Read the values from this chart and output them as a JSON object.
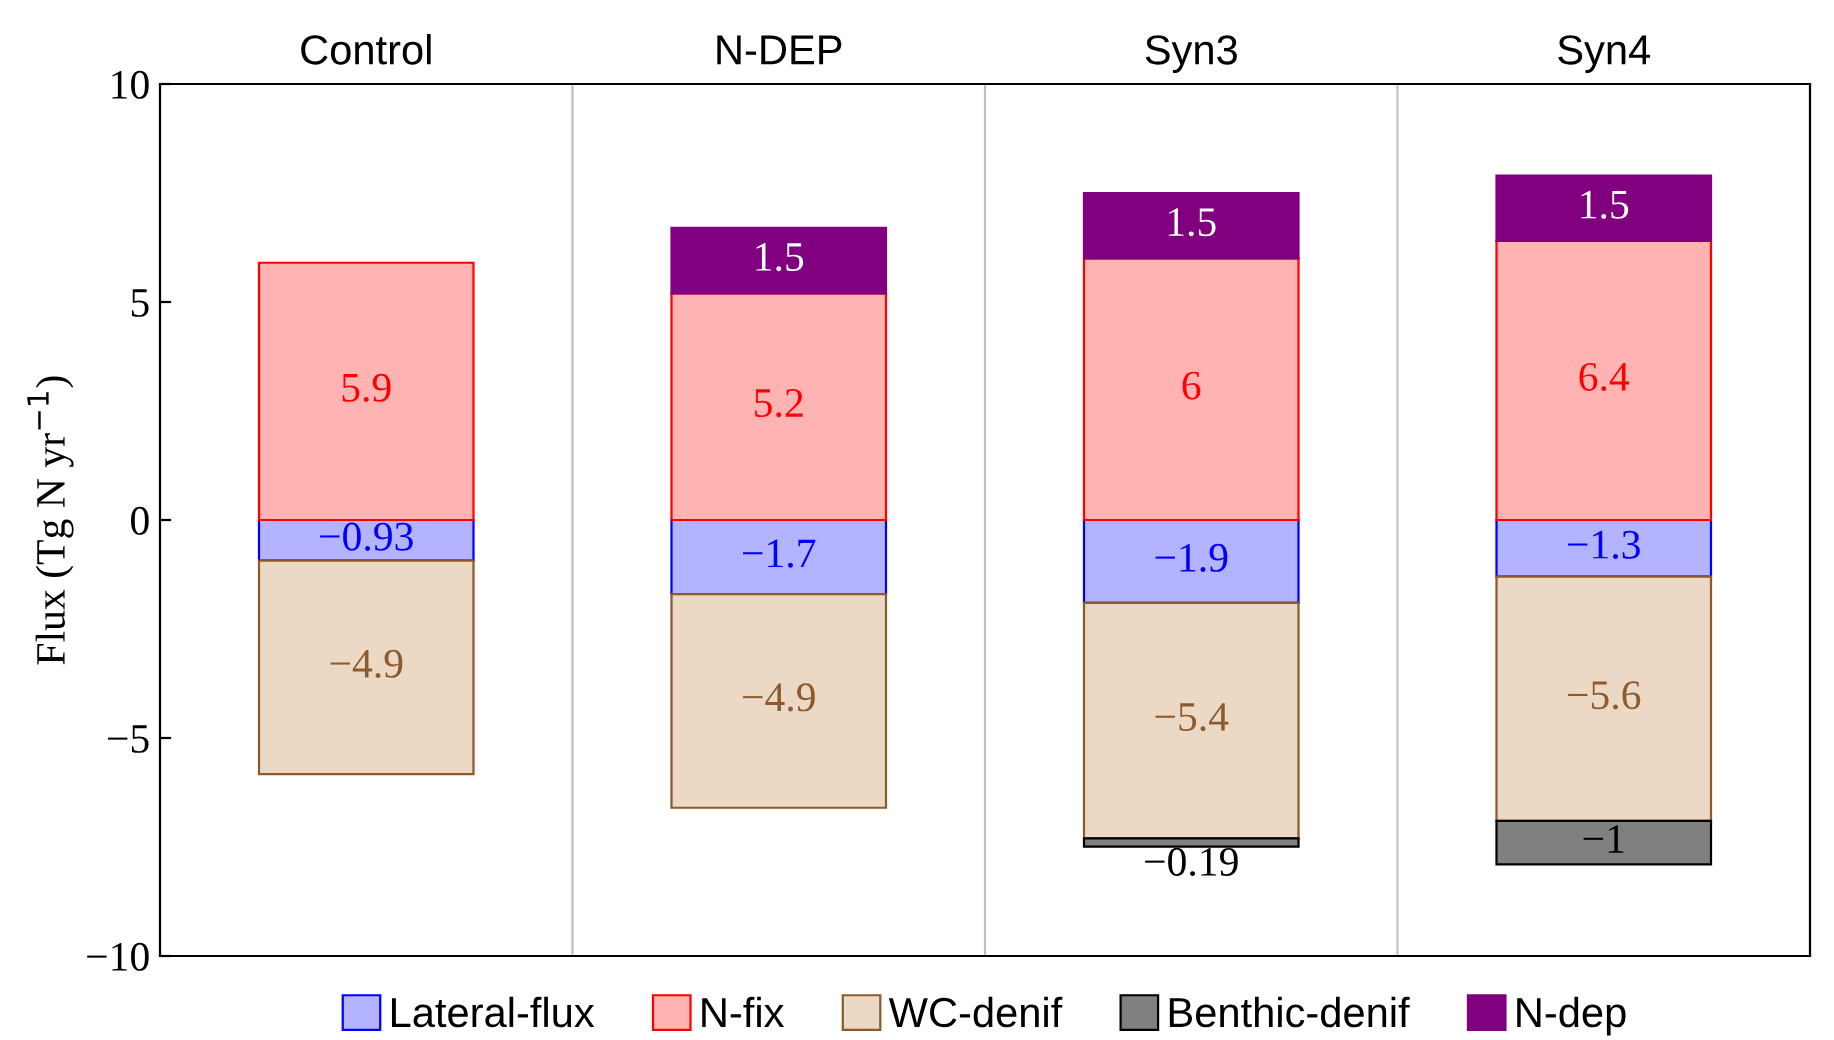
{
  "chart_data": {
    "type": "bar",
    "stacked": true,
    "ylabel": "Flux (Tg N yr$^{−1}$)",
    "categories": [
      "Control",
      "N-DEP",
      "Syn3",
      "Syn4"
    ],
    "series": [
      {
        "name": "Lateral-flux",
        "color": "#b3b3ff",
        "values": [
          -0.93,
          -1.7,
          -1.9,
          -1.3
        ]
      },
      {
        "name": "N-fix",
        "color": "#ffb3b3",
        "values": [
          5.9,
          5.2,
          6,
          6.4
        ]
      },
      {
        "name": "WC-denif",
        "color": "#ebd9c6",
        "values": [
          -4.9,
          -4.9,
          -5.4,
          -5.6
        ]
      },
      {
        "name": "Benthic-denif",
        "color": "#808080",
        "values": [
          null,
          null,
          -0.19,
          -1
        ]
      },
      {
        "name": "N-dep",
        "color": "#800080",
        "values": [
          null,
          1.5,
          1.5,
          1.5
        ]
      }
    ],
    "ylim": [
      -10,
      10
    ],
    "yticks": [
      {
        "value": -10,
        "label": "−10"
      },
      {
        "value": -5,
        "label": "−5"
      },
      0,
      5,
      10
    ],
    "data_labels": true,
    "grid": "x",
    "legend": "bottom"
  }
}
